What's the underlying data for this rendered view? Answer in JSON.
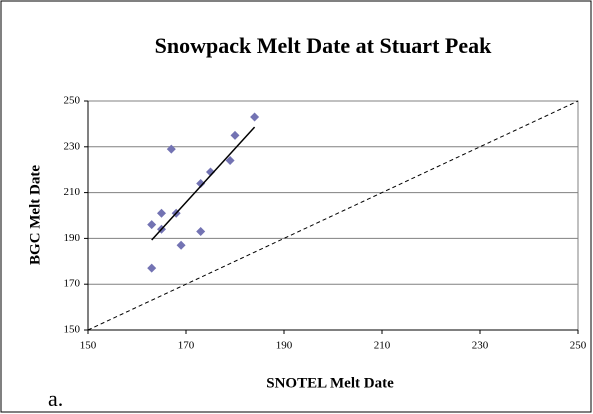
{
  "chart_data": {
    "type": "scatter",
    "title": "Snowpack Melt Date at Stuart Peak",
    "x_label": "SNOTEL Melt Date",
    "y_label": "BGC Melt Date",
    "annotation": "a.",
    "series": [
      {
        "color": "#7373b3",
        "x": [
          184,
          180,
          179,
          175,
          173,
          167,
          168,
          165,
          163,
          165,
          169,
          173,
          163
        ],
        "values": [
          243,
          235,
          224,
          219,
          214,
          229,
          201,
          201,
          196,
          194,
          187,
          193,
          177
        ]
      }
    ],
    "trend_line": {
      "x": [
        163,
        184
      ],
      "values": [
        189.3,
        238.6
      ],
      "color": "#000000"
    },
    "reference_line": {
      "x": [
        150,
        250
      ],
      "values": [
        150,
        250
      ],
      "color": "#000000",
      "dashed": true
    },
    "xlim": [
      150,
      250
    ],
    "xticks": [
      150,
      170,
      190,
      210,
      230,
      250
    ],
    "ylim": [
      150,
      250
    ],
    "yticks": [
      150,
      170,
      190,
      210,
      230,
      250
    ],
    "grid": true
  }
}
